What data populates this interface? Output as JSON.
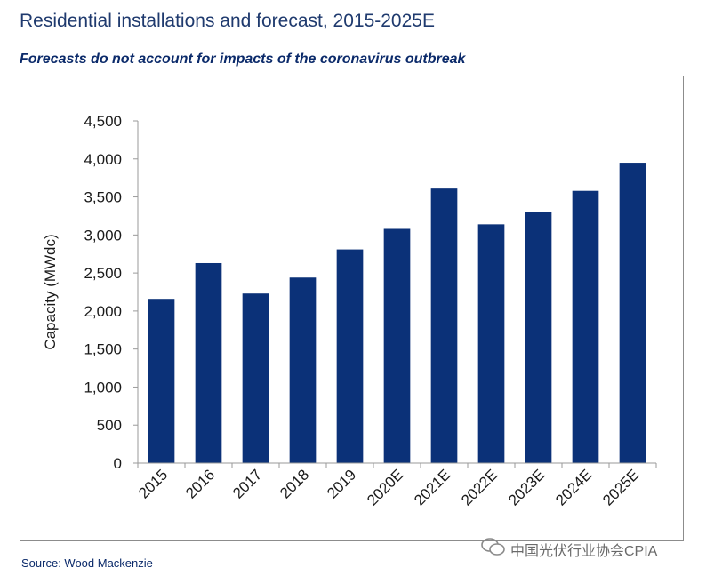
{
  "title": "Residential installations and forecast, 2015-2025E",
  "subtitle": "Forecasts do not account for impacts of the coronavirus outbreak",
  "source": "Source: Wood Mackenzie",
  "watermark": "中国光伏行业协会CPIA",
  "colors": {
    "bar": "#0b3178",
    "title": "#1f3a6e",
    "subtitle": "#0b2a6a"
  },
  "chart_data": {
    "type": "bar",
    "title": "",
    "xlabel": "",
    "ylabel": "Capacity (MWdc)",
    "categories": [
      "2015",
      "2016",
      "2017",
      "2018",
      "2019",
      "2020E",
      "2021E",
      "2022E",
      "2023E",
      "2024E",
      "2025E"
    ],
    "values": [
      2160,
      2630,
      2230,
      2440,
      2810,
      3080,
      3610,
      3140,
      3300,
      3580,
      3950
    ],
    "ylim": [
      0,
      4500
    ],
    "yticks": [
      "0",
      "500",
      "1,000",
      "1,500",
      "2,000",
      "2,500",
      "3,000",
      "3,500",
      "4,000",
      "4,500"
    ],
    "grid": false,
    "legend": "none"
  }
}
